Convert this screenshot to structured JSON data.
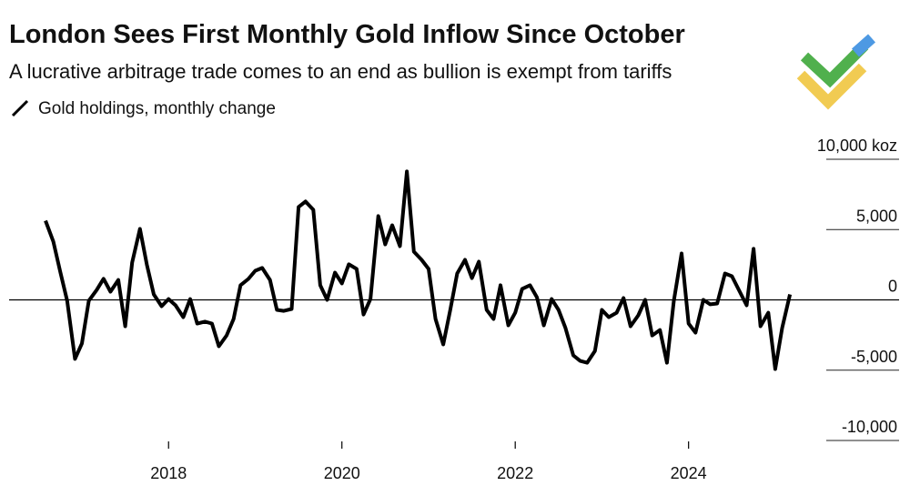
{
  "chart_data": {
    "type": "line",
    "title": "London Sees First Monthly Gold Inflow Since October",
    "subtitle": "A lucrative arbitrage trade comes to an end as bullion is exempt from tariffs",
    "x": [
      2016.58,
      2016.67,
      2016.75,
      2016.83,
      2016.92,
      2017.0,
      2017.08,
      2017.17,
      2017.25,
      2017.33,
      2017.42,
      2017.5,
      2017.58,
      2017.67,
      2017.75,
      2017.83,
      2017.92,
      2018.0,
      2018.08,
      2018.17,
      2018.25,
      2018.33,
      2018.42,
      2018.5,
      2018.58,
      2018.67,
      2018.75,
      2018.83,
      2018.92,
      2019.0,
      2019.08,
      2019.17,
      2019.25,
      2019.33,
      2019.42,
      2019.5,
      2019.58,
      2019.67,
      2019.75,
      2019.83,
      2019.92,
      2020.0,
      2020.08,
      2020.17,
      2020.25,
      2020.33,
      2020.42,
      2020.5,
      2020.58,
      2020.67,
      2020.75,
      2020.83,
      2020.92,
      2021.0,
      2021.08,
      2021.17,
      2021.25,
      2021.33,
      2021.42,
      2021.5,
      2021.58,
      2021.67,
      2021.75,
      2021.83,
      2021.92,
      2022.0,
      2022.08,
      2022.17,
      2022.25,
      2022.33,
      2022.42,
      2022.5,
      2022.58,
      2022.67,
      2022.75,
      2022.83,
      2022.92,
      2023.0,
      2023.08,
      2023.17,
      2023.25,
      2023.33,
      2023.42,
      2023.5,
      2023.58,
      2023.67,
      2023.75,
      2023.83,
      2023.92,
      2024.0,
      2024.08,
      2024.17,
      2024.25,
      2024.33,
      2024.42,
      2024.5,
      2024.58,
      2024.67,
      2024.75,
      2024.83,
      2024.92,
      2025.0,
      2025.08,
      2025.17
    ],
    "series": [
      {
        "name": "Gold holdings, monthly change",
        "color": "#000000",
        "values": [
          5630,
          4150,
          2000,
          -60,
          -4200,
          -3100,
          -60,
          700,
          1500,
          580,
          1420,
          -1880,
          2650,
          5050,
          2500,
          390,
          -450,
          60,
          -390,
          -1230,
          60,
          -1680,
          -1550,
          -1680,
          -3300,
          -2530,
          -1360,
          1040,
          1490,
          2070,
          2270,
          1420,
          -710,
          -780,
          -650,
          6610,
          7000,
          6410,
          1040,
          0,
          1940,
          1170,
          2530,
          2200,
          -1040,
          60,
          5960,
          3950,
          5310,
          3820,
          9130,
          3430,
          2850,
          2200,
          -1360,
          -3170,
          -710,
          1880,
          2850,
          1550,
          2720,
          -710,
          -1360,
          1040,
          -1810,
          -910,
          780,
          1040,
          190,
          -1810,
          60,
          -710,
          -2000,
          -3950,
          -4340,
          -4470,
          -3630,
          -710,
          -1230,
          -910,
          130,
          -1880,
          -1100,
          0,
          -2530,
          -2140,
          -4470,
          -60,
          3300,
          -1680,
          -2330,
          0,
          -320,
          -260,
          1880,
          1680,
          710,
          -390,
          3630,
          -1880,
          -910,
          -4920,
          -2000,
          390
        ]
      }
    ],
    "xlim": [
      2016.16,
      2025.61
    ],
    "xticks": [
      2018,
      2020,
      2022,
      2024
    ],
    "ylim": [
      -10000,
      10000
    ],
    "yticks": [
      {
        "value": 10000,
        "label": "10,000 koz"
      },
      {
        "value": 5000,
        "label": "5,000"
      },
      0,
      {
        "value": -5000,
        "label": "-5,000"
      },
      {
        "value": -10000,
        "label": "-10,000"
      }
    ]
  }
}
